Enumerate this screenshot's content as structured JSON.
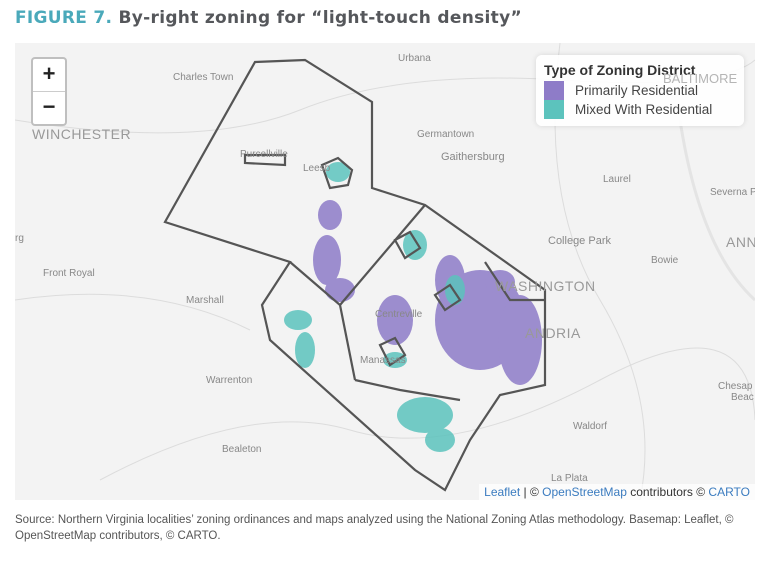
{
  "title": {
    "figure": "FIGURE 7.",
    "text": "By-right zoning for “light-touch density”"
  },
  "map": {
    "zoom_in": "+",
    "zoom_out": "−",
    "legend": {
      "title": "Type of Zoning District",
      "items": [
        {
          "label": "Primarily Residential",
          "color": "#8e7cc8"
        },
        {
          "label": "Mixed With Residential",
          "color": "#5cc3bd"
        }
      ]
    },
    "labels": {
      "urbana": "Urbana",
      "charles_town": "Charles Town",
      "winchester": "WINCHESTER",
      "germantown": "Germantown",
      "gaithersburg": "Gaithersburg",
      "laurel": "Laurel",
      "severna": "Severna P",
      "college_park": "College Park",
      "bowie": "Bowie",
      "ann": "ANN",
      "washington": "WASHINGTON",
      "alexandria": "ANDRIA",
      "front_royal": "Front Royal",
      "marshall": "Marshall",
      "warrenton": "Warrenton",
      "bealeton": "Bealeton",
      "waldorf": "Waldorf",
      "la_plata": "La Plata",
      "chesapeake": "Chesap",
      "beach": "Beac",
      "rg": "rg",
      "leesburg": "Leesb",
      "purcellville": "Purcellville",
      "centreville": "Centreville",
      "manassas": "Manassas",
      "baltimore": "BALTIMORE"
    },
    "attribution": {
      "leaflet": "Leaflet",
      "sep": " | © ",
      "osm": "OpenStreetMap",
      "contrib": " contributors © ",
      "carto": "CARTO"
    },
    "colors": {
      "boundary": "#555555",
      "residential": "#8e7cc8",
      "mixed": "#5cc3bd"
    }
  },
  "source": "Source: Northern Virginia localities’ zoning ordinances and maps analyzed using the National Zoning Atlas methodology. Basemap: Leaflet, © OpenStreetMap contributors, © CARTO."
}
